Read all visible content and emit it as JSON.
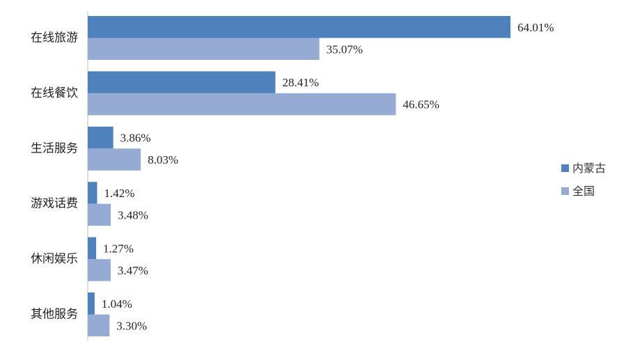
{
  "chart_data": {
    "type": "bar",
    "orientation": "horizontal",
    "categories": [
      "在线旅游",
      "在线餐饮",
      "生活服务",
      "游戏话费",
      "休闲娱乐",
      "其他服务"
    ],
    "series": [
      {
        "name": "内蒙古",
        "color": "#4f81bd",
        "values": [
          64.01,
          28.41,
          3.86,
          1.42,
          1.27,
          1.04
        ],
        "labels": [
          "64.01%",
          "28.41%",
          "3.86%",
          "1.42%",
          "1.27%",
          "1.04%"
        ]
      },
      {
        "name": "全国",
        "color": "#95abd3",
        "values": [
          35.07,
          46.65,
          8.03,
          3.48,
          3.47,
          3.3
        ],
        "labels": [
          "35.07%",
          "46.65%",
          "8.03%",
          "3.48%",
          "3.47%",
          "3.30%"
        ]
      }
    ],
    "xlim": [
      0,
      70
    ],
    "grid": false,
    "legend_position": "right"
  }
}
